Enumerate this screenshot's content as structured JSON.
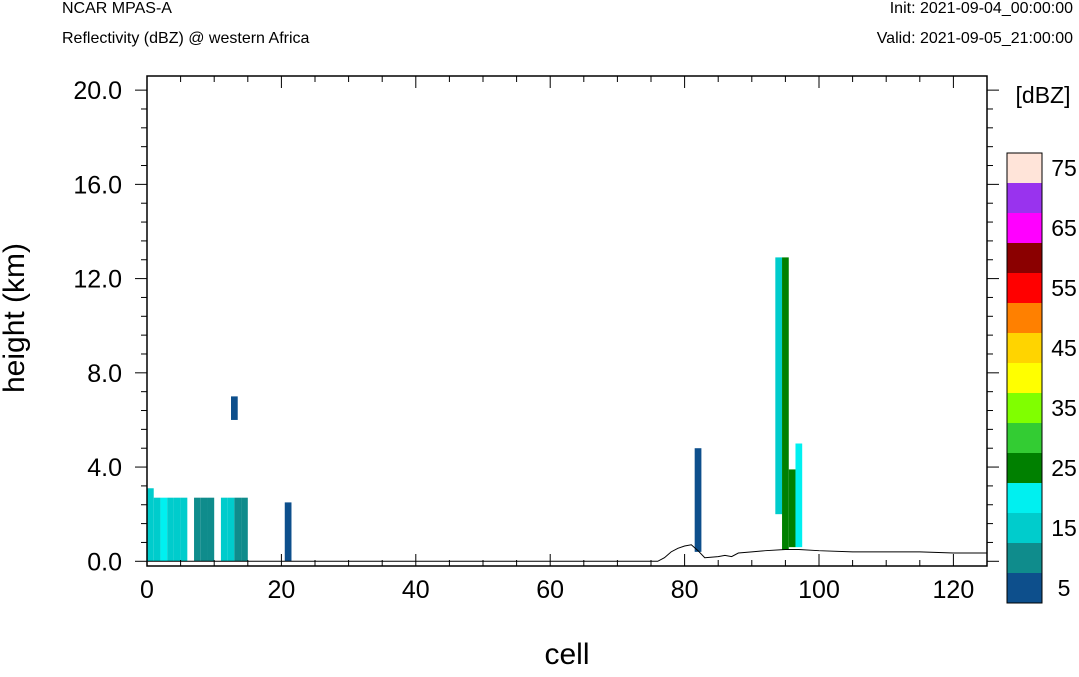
{
  "header": {
    "model": "NCAR MPAS-A",
    "subtitle": "Reflectivity (dBZ) @ western Africa",
    "init": "Init: 2021-09-04_00:00:00",
    "valid": "Valid: 2021-09-05_21:00:00"
  },
  "chart_data": {
    "type": "heatmap",
    "title": "Reflectivity (dBZ) @ western Africa",
    "xlabel": "cell",
    "ylabel": "height (km)",
    "xlim": [
      0,
      125
    ],
    "ylim": [
      -0.2,
      20.6
    ],
    "x_ticks": [
      0,
      20,
      40,
      60,
      80,
      100,
      120
    ],
    "x_tick_labels": [
      "0",
      "20",
      "40",
      "60",
      "80",
      "100",
      "120"
    ],
    "y_ticks": [
      0,
      4,
      8,
      12,
      16,
      20
    ],
    "y_tick_labels": [
      "0.0",
      "4.0",
      "8.0",
      "12.0",
      "16.0",
      "20.0"
    ],
    "grid": false,
    "colorbar": {
      "unit": "[dBZ]",
      "levels": [
        5,
        10,
        15,
        20,
        25,
        30,
        35,
        40,
        45,
        50,
        55,
        60,
        65,
        70,
        75
      ],
      "labels": [
        "5",
        "15",
        "25",
        "35",
        "45",
        "55",
        "65",
        "75"
      ],
      "colors": [
        "#0d4f8c",
        "#0f8c8c",
        "#00cccc",
        "#00f0f0",
        "#008000",
        "#33cc33",
        "#80ff00",
        "#ffff00",
        "#ffd400",
        "#ff8000",
        "#ff0000",
        "#8b0000",
        "#ff00ff",
        "#9933ee",
        "#ffe4d9"
      ]
    },
    "cells": [
      {
        "x": 0,
        "y0": 0,
        "y1": 3.1,
        "dbz": 15
      },
      {
        "x": 1,
        "y0": 0,
        "y1": 2.7,
        "dbz": 15
      },
      {
        "x": 2,
        "y0": 0,
        "y1": 2.7,
        "dbz": 20
      },
      {
        "x": 3,
        "y0": 0,
        "y1": 2.7,
        "dbz": 15
      },
      {
        "x": 4,
        "y0": 0,
        "y1": 2.7,
        "dbz": 15
      },
      {
        "x": 5,
        "y0": 0,
        "y1": 2.7,
        "dbz": 15
      },
      {
        "x": 7,
        "y0": 0,
        "y1": 2.7,
        "dbz": 10
      },
      {
        "x": 8,
        "y0": 0,
        "y1": 2.7,
        "dbz": 10
      },
      {
        "x": 9,
        "y0": 0,
        "y1": 2.7,
        "dbz": 10
      },
      {
        "x": 11,
        "y0": 0,
        "y1": 2.7,
        "dbz": 15
      },
      {
        "x": 12,
        "y0": 0,
        "y1": 2.7,
        "dbz": 15
      },
      {
        "x": 13,
        "y0": 0,
        "y1": 2.7,
        "dbz": 10
      },
      {
        "x": 14,
        "y0": 0,
        "y1": 2.7,
        "dbz": 10
      },
      {
        "x": 12.5,
        "y0": 6.0,
        "y1": 7.0,
        "dbz": 5
      },
      {
        "x": 20.5,
        "y0": 0,
        "y1": 2.5,
        "dbz": 5
      },
      {
        "x": 81.5,
        "y0": 0.4,
        "y1": 4.8,
        "dbz": 5
      },
      {
        "x": 93.5,
        "y0": 2.0,
        "y1": 12.9,
        "dbz": 15
      },
      {
        "x": 94.5,
        "y0": 0.5,
        "y1": 12.9,
        "dbz": 25
      },
      {
        "x": 95.5,
        "y0": 0.6,
        "y1": 3.9,
        "dbz": 25
      },
      {
        "x": 96.5,
        "y0": 0.6,
        "y1": 5.0,
        "dbz": 20
      }
    ],
    "terrain": {
      "x": [
        0,
        76,
        77,
        78,
        79,
        80,
        81,
        82,
        83,
        85,
        86,
        87,
        88,
        90,
        92,
        95,
        97,
        100,
        105,
        110,
        115,
        120,
        125
      ],
      "y": [
        0,
        0,
        0.15,
        0.4,
        0.55,
        0.65,
        0.7,
        0.45,
        0.15,
        0.2,
        0.25,
        0.2,
        0.35,
        0.4,
        0.45,
        0.5,
        0.5,
        0.45,
        0.4,
        0.4,
        0.4,
        0.35,
        0.35
      ]
    }
  }
}
